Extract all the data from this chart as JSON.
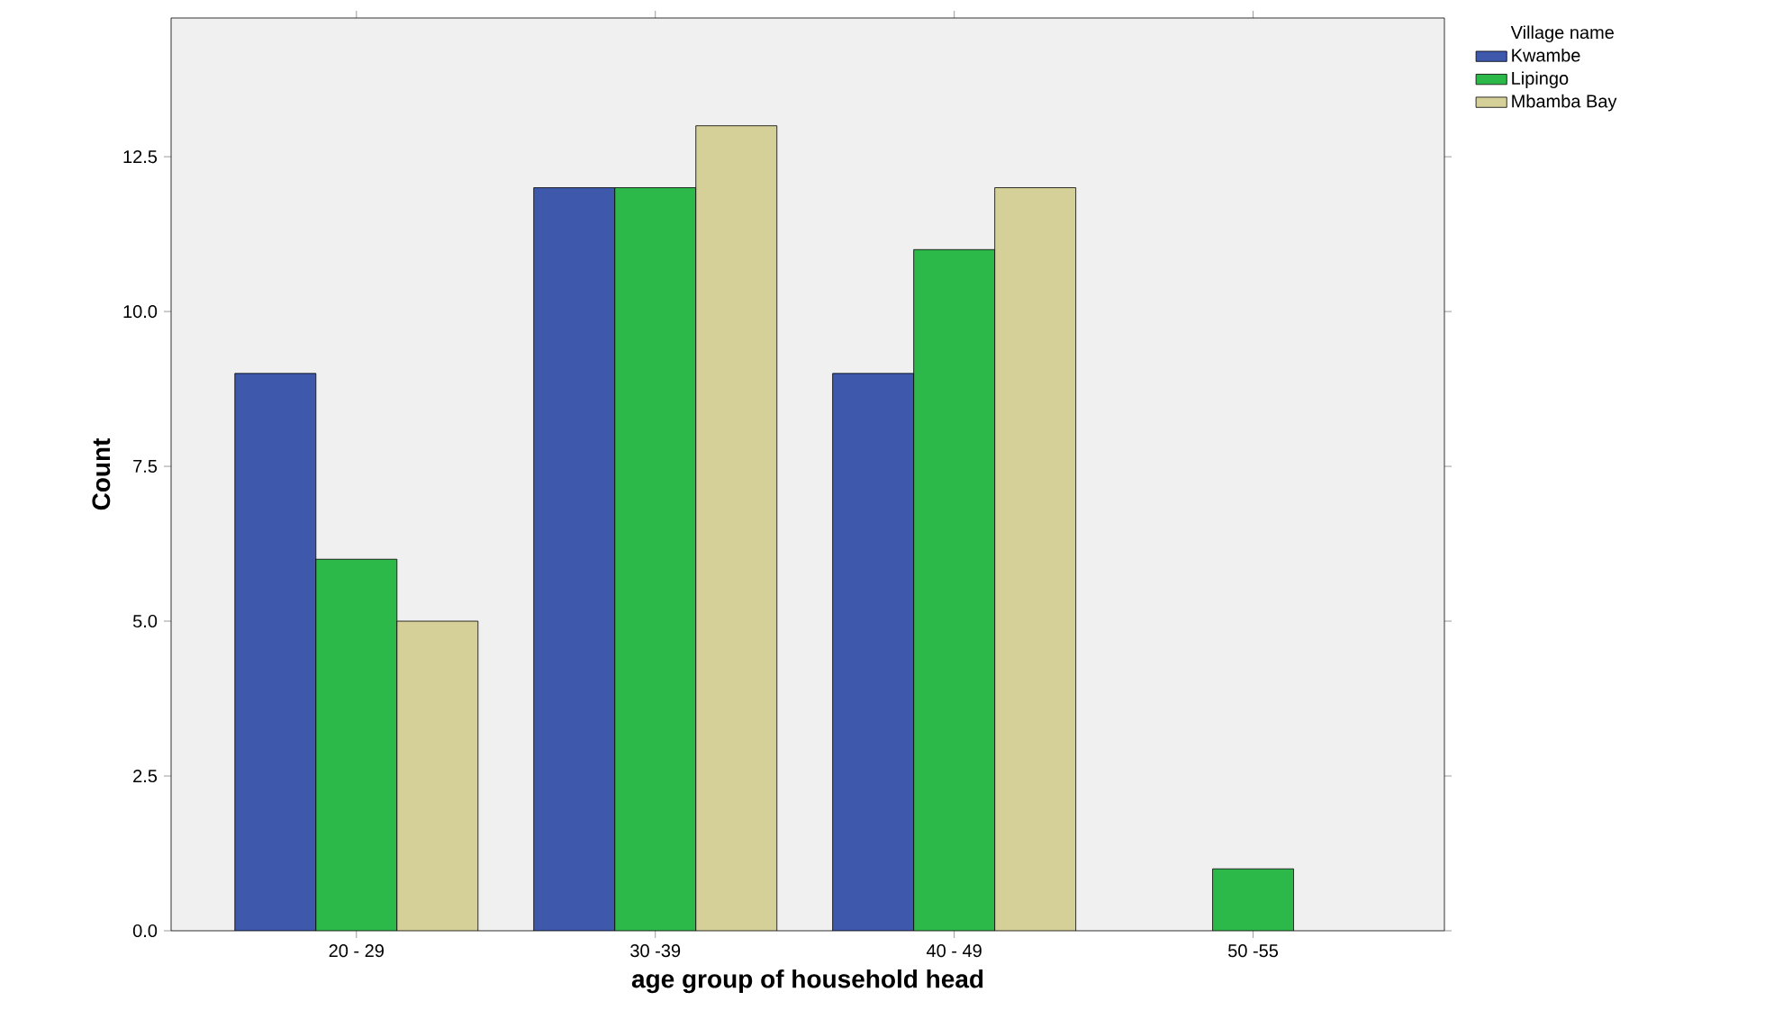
{
  "chart_data": {
    "type": "bar",
    "xlabel": "age group of household head",
    "ylabel": "Count",
    "legend_title": "Village name",
    "legend": "top right",
    "categories": [
      "20 - 29",
      "30 -39",
      "40 - 49",
      "50 -55"
    ],
    "series": [
      {
        "name": "Kwambe",
        "color": "#3e58ac",
        "values": [
          9,
          12,
          9,
          null
        ]
      },
      {
        "name": "Lipingo",
        "color": "#2db84a",
        "values": [
          6,
          12,
          11,
          1
        ]
      },
      {
        "name": "Mbamba Bay",
        "color": "#d5cf98",
        "values": [
          5,
          13,
          12,
          null
        ]
      }
    ],
    "ylim": [
      0,
      14.74
    ],
    "yticks": [
      {
        "value": 0,
        "label": "0.0"
      },
      {
        "value": 2.5,
        "label": "2.5"
      },
      {
        "value": 5,
        "label": "5.0"
      },
      {
        "value": 7.5,
        "label": "7.5"
      },
      {
        "value": 10,
        "label": "10.0"
      },
      {
        "value": 12.5,
        "label": "12.5"
      }
    ]
  }
}
